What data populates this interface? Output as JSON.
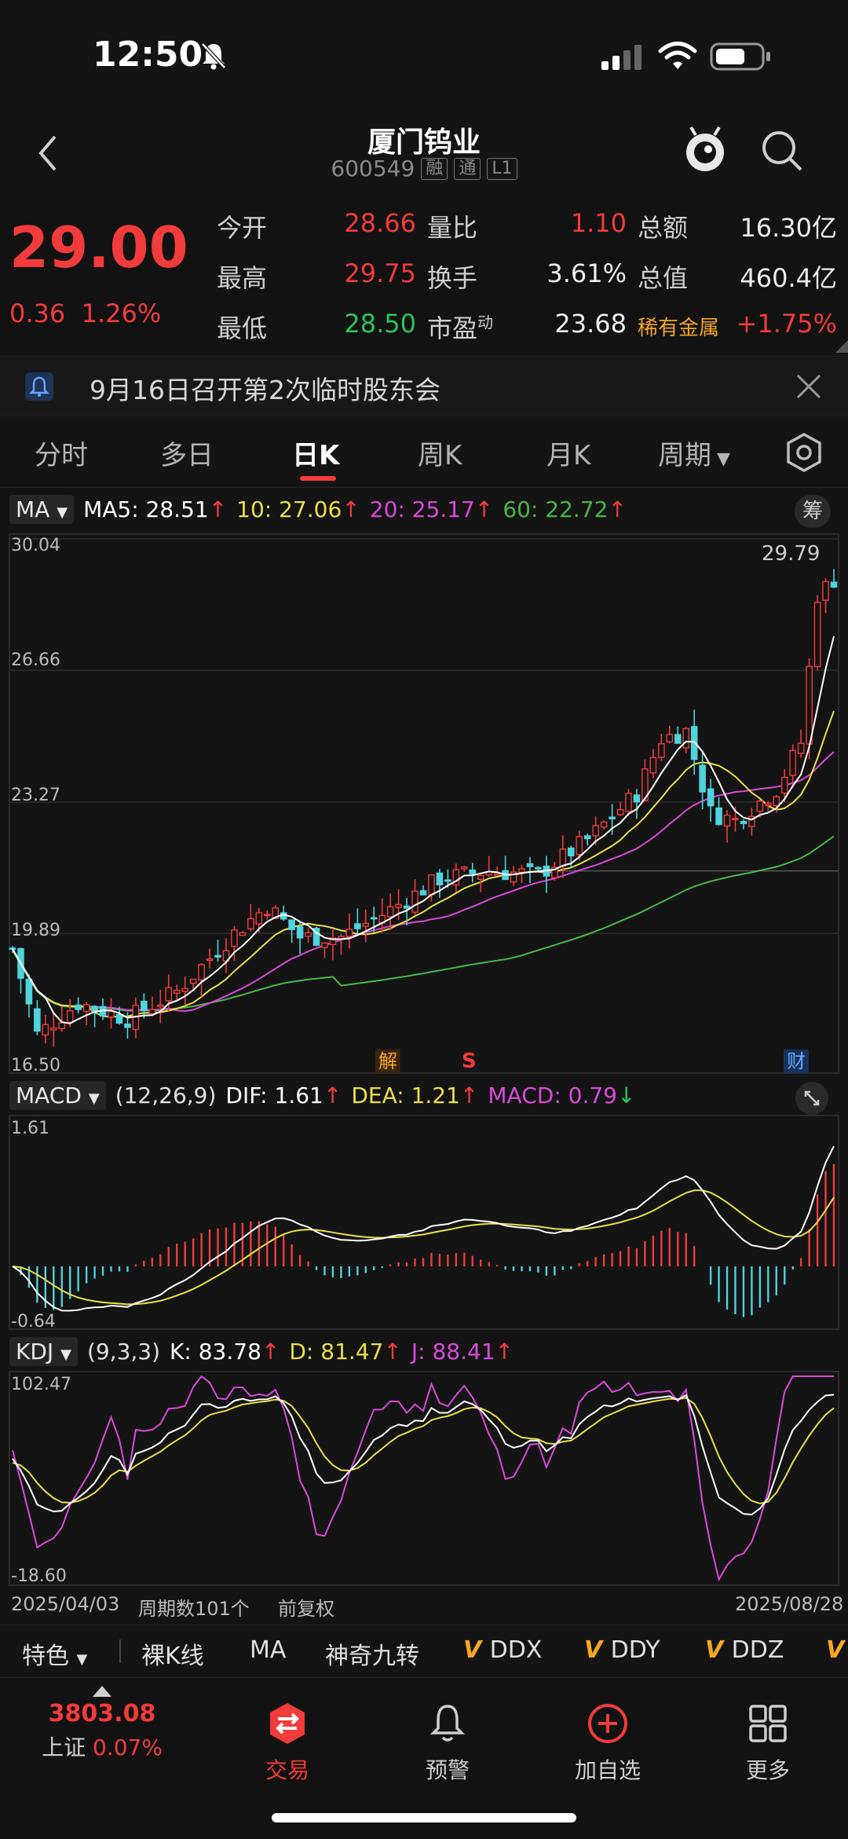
{
  "status_bar": {
    "time": "12:50"
  },
  "header": {
    "title": "厦门钨业",
    "code": "600549",
    "tags": [
      "融",
      "通",
      "L1"
    ]
  },
  "quote": {
    "price": "29.00",
    "change": "0.36",
    "change_pct": "1.26%",
    "rows": [
      [
        {
          "label": "今开",
          "value": "28.66",
          "color": "red"
        },
        {
          "label": "量比",
          "value": "1.10",
          "color": "red"
        },
        {
          "label": "总额",
          "value": "16.30亿",
          "color": "white"
        }
      ],
      [
        {
          "label": "最高",
          "value": "29.75",
          "color": "red"
        },
        {
          "label": "换手",
          "value": "3.61%",
          "color": "white"
        },
        {
          "label": "总值",
          "value": "460.4亿",
          "color": "white"
        }
      ],
      [
        {
          "label": "最低",
          "value": "28.50",
          "color": "green"
        },
        {
          "label": "市盈",
          "value": "23.68",
          "color": "white"
        },
        {
          "label": "稀有金属",
          "value": "+1.75%",
          "color": "red"
        }
      ]
    ],
    "pe_sup": "动"
  },
  "notice": {
    "text": "9月16日召开第2次临时股东会"
  },
  "tabs": [
    "分时",
    "多日",
    "日K",
    "周K",
    "月K",
    "周期"
  ],
  "active_tab": "日K",
  "ma": {
    "label": "MA",
    "ma5": "MA5: 28.51",
    "ma10": "10: 27.06",
    "ma20": "20: 25.17",
    "ma60": "60: 22.72",
    "chip_label": "筹",
    "y_ticks": [
      "30.04",
      "26.66",
      "23.27",
      "19.89",
      "16.50"
    ],
    "high_label": "29.79",
    "events": [
      "解",
      "S",
      "财"
    ]
  },
  "macd": {
    "label": "MACD",
    "params": "(12,26,9)",
    "dif": "DIF: 1.61",
    "dea": "DEA: 1.21",
    "macd": "MACD: 0.79",
    "y_top": "1.61",
    "y_bottom": "-0.64"
  },
  "kdj": {
    "label": "KDJ",
    "params": "(9,3,3)",
    "k": "K: 83.78",
    "d": "D: 81.47",
    "j": "J: 88.41",
    "y_top": "102.47",
    "y_bottom": "-18.60"
  },
  "x_axis": {
    "start": "2025/04/03",
    "period_count": "周期数101个",
    "adjust": "前复权",
    "end": "2025/08/28"
  },
  "toolbar": {
    "items": [
      "特色",
      "裸K线",
      "MA",
      "神奇九转",
      "DDX",
      "DDY",
      "DDZ"
    ]
  },
  "bottom_nav": {
    "index_value": "3803.08",
    "index_name": "上证",
    "index_pct": "0.07%",
    "trade": "交易",
    "alert": "预警",
    "add_watch": "加自选",
    "more": "更多"
  },
  "colors": {
    "up": "#f23b3b",
    "down": "#4fd3dd",
    "ma5": "#ffffff",
    "ma10": "#e8e04a",
    "ma20": "#d94ad9",
    "ma60": "#48b848"
  }
}
